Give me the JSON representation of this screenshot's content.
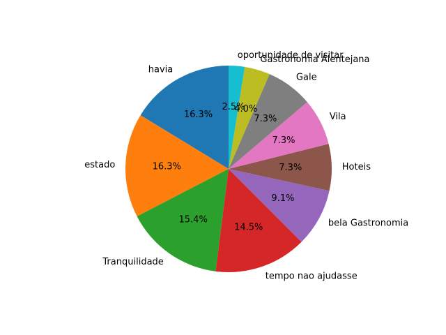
{
  "chart_data": {
    "type": "pie",
    "start_angle": 90,
    "direction": "counterclockwise",
    "slices": [
      {
        "label": "havia",
        "value": 16.3,
        "pct_label": "16.3%",
        "color": "#1f77b4"
      },
      {
        "label": "estado",
        "value": 16.3,
        "pct_label": "16.3%",
        "color": "#ff7f0e"
      },
      {
        "label": "Tranquilidade",
        "value": 15.4,
        "pct_label": "15.4%",
        "color": "#2ca02c"
      },
      {
        "label": "tempo nao ajudasse",
        "value": 14.5,
        "pct_label": "14.5%",
        "color": "#d62728"
      },
      {
        "label": "bela Gastronomia",
        "value": 9.1,
        "pct_label": "9.1%",
        "color": "#9467bd"
      },
      {
        "label": "Hoteis",
        "value": 7.3,
        "pct_label": "7.3%",
        "color": "#8c564b"
      },
      {
        "label": "Vila",
        "value": 7.3,
        "pct_label": "7.3%",
        "color": "#e377c2"
      },
      {
        "label": "Gale",
        "value": 7.3,
        "pct_label": "7.3%",
        "color": "#7f7f7f"
      },
      {
        "label": "Gastronomia Alentejana",
        "value": 4.0,
        "pct_label": "4.0%",
        "color": "#bcbd22"
      },
      {
        "label": "oportunidade de visitar",
        "value": 2.5,
        "pct_label": "2.5%",
        "color": "#17becf"
      }
    ]
  }
}
